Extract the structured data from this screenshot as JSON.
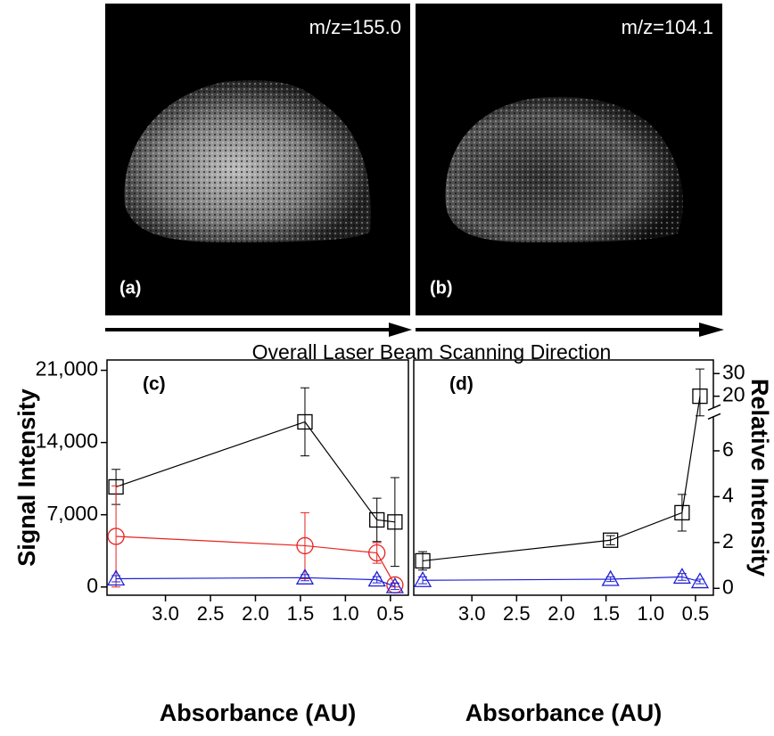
{
  "images": [
    {
      "caption": "m/z=155.0",
      "label": "(a)"
    },
    {
      "caption": "m/z=104.1",
      "label": "(b)"
    }
  ],
  "scan_direction": "Overall Laser Beam Scanning Direction",
  "chart_data": [
    {
      "type": "line",
      "label": "(c)",
      "x_label": "Absorbance (AU)",
      "y_label": "Signal Intensity",
      "x": [
        3.55,
        1.45,
        0.65,
        0.45
      ],
      "xlim": [
        3.65,
        0.3
      ],
      "xticks": [
        {
          "value": 3,
          "label": "3.0"
        },
        2.5,
        {
          "value": 2,
          "label": "2.0"
        },
        1.5,
        {
          "value": 1,
          "label": "1.0"
        },
        0.5
      ],
      "ylim": [
        -800,
        22000
      ],
      "yticks": [
        0,
        {
          "value": 7000,
          "label": "7,000"
        },
        {
          "value": 14000,
          "label": "14,000"
        },
        {
          "value": 21000,
          "label": "21,000"
        }
      ],
      "series": [
        {
          "marker": "square",
          "color": "#000000",
          "values": [
            9700,
            16000,
            6500,
            6300
          ],
          "errors": [
            1700,
            3300,
            2100,
            4300
          ]
        },
        {
          "marker": "circle",
          "color": "#e8231f",
          "values": [
            4900,
            4000,
            3300,
            200
          ],
          "errors": [
            4900,
            3200,
            1000,
            200
          ]
        },
        {
          "marker": "triangle",
          "color": "#1f1fd6",
          "values": [
            800,
            900,
            700,
            50
          ],
          "errors": [
            300,
            300,
            300,
            300
          ]
        }
      ]
    },
    {
      "type": "line",
      "label": "(d)",
      "x_label": "Absorbance (AU)",
      "y2_label": "Relative Intensity",
      "x": [
        3.55,
        1.45,
        0.65,
        0.45
      ],
      "xlim": [
        3.65,
        0.3
      ],
      "xticks": [
        {
          "value": 3,
          "label": "3.0"
        },
        2.5,
        {
          "value": 2,
          "label": "2.0"
        },
        1.5,
        {
          "value": 1,
          "label": "1.0"
        },
        0.5
      ],
      "y2lim": [
        -0.3,
        36
      ],
      "y2break": [
        7.5,
        15
      ],
      "y2ticks": [
        0,
        2,
        4,
        6,
        20,
        30
      ],
      "series": [
        {
          "marker": "square",
          "color": "#000000",
          "axis": "y2",
          "values": [
            1.2,
            2.1,
            3.3,
            20
          ],
          "errors": [
            0.4,
            0.2,
            0.8,
            12
          ]
        },
        {
          "marker": "triangle",
          "color": "#1f1fd6",
          "axis": "y2",
          "values": [
            0.35,
            0.4,
            0.5,
            0.3
          ],
          "errors": [
            0.15,
            0.1,
            0.15,
            0.1
          ]
        }
      ]
    }
  ]
}
